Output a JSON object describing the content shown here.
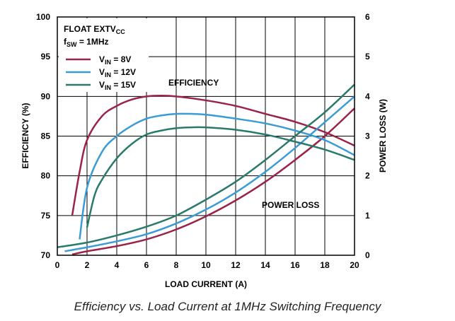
{
  "caption": "Efficiency vs. Load Current at 1MHz Switching Frequency",
  "chart_data": {
    "type": "line",
    "xlabel": "LOAD CURRENT (A)",
    "ylabel": "EFFICIENCY (%)",
    "y2label": "POWER LOSS (W)",
    "xlim": [
      0,
      20
    ],
    "ylim": [
      70,
      100
    ],
    "y2lim": [
      0,
      6
    ],
    "x_ticks": [
      "0",
      "2",
      "4",
      "6",
      "8",
      "10",
      "12",
      "14",
      "16",
      "18",
      "20"
    ],
    "y_ticks": [
      "70",
      "75",
      "80",
      "85",
      "90",
      "95",
      "100"
    ],
    "y2_ticks": [
      "0",
      "1",
      "2",
      "3",
      "4",
      "5",
      "6"
    ],
    "grid": true,
    "legend_placement": "top-left",
    "conditions": {
      "line1_main": "FLOAT EXTV",
      "line1_sub": "CC",
      "line2_main": "f",
      "line2_sub": "SW",
      "line2_rest": " = 1MHz"
    },
    "annotations": {
      "efficiency": "EFFICIENCY",
      "power_loss": "POWER LOSS"
    },
    "series": [
      {
        "name": "VIN = 8V",
        "label_main": "V",
        "label_sub": "IN",
        "label_rest": " = 8V",
        "color": "#9b2346",
        "efficiency": [
          [
            1.0,
            75.0
          ],
          [
            1.5,
            80.5
          ],
          [
            2.0,
            84.5
          ],
          [
            3.0,
            87.5
          ],
          [
            4.0,
            88.8
          ],
          [
            5.0,
            89.6
          ],
          [
            6.0,
            90.0
          ],
          [
            7.0,
            90.1
          ],
          [
            8.0,
            90.0
          ],
          [
            10.0,
            89.5
          ],
          [
            12.0,
            88.8
          ],
          [
            14.0,
            87.8
          ],
          [
            16.0,
            86.8
          ],
          [
            18.0,
            85.5
          ],
          [
            20.0,
            83.8
          ]
        ],
        "power_loss": [
          [
            1.0,
            0.02
          ],
          [
            2.0,
            0.1
          ],
          [
            4.0,
            0.23
          ],
          [
            6.0,
            0.4
          ],
          [
            8.0,
            0.65
          ],
          [
            10.0,
            0.98
          ],
          [
            12.0,
            1.38
          ],
          [
            14.0,
            1.85
          ],
          [
            16.0,
            2.4
          ],
          [
            18.0,
            3.0
          ],
          [
            20.0,
            3.7
          ]
        ]
      },
      {
        "name": "VIN = 12V",
        "label_main": "V",
        "label_sub": "IN",
        "label_rest": " = 12V",
        "color": "#3a9bd5",
        "efficiency": [
          [
            1.5,
            72.0
          ],
          [
            2.0,
            78.5
          ],
          [
            3.0,
            83.0
          ],
          [
            4.0,
            85.0
          ],
          [
            5.0,
            86.3
          ],
          [
            6.0,
            87.2
          ],
          [
            7.0,
            87.6
          ],
          [
            8.0,
            87.8
          ],
          [
            9.0,
            87.8
          ],
          [
            10.0,
            87.7
          ],
          [
            12.0,
            87.2
          ],
          [
            14.0,
            86.6
          ],
          [
            16.0,
            85.7
          ],
          [
            18.0,
            84.5
          ],
          [
            20.0,
            82.6
          ]
        ],
        "power_loss": [
          [
            0.5,
            0.1
          ],
          [
            2.0,
            0.2
          ],
          [
            4.0,
            0.35
          ],
          [
            6.0,
            0.53
          ],
          [
            8.0,
            0.8
          ],
          [
            10.0,
            1.15
          ],
          [
            12.0,
            1.58
          ],
          [
            14.0,
            2.1
          ],
          [
            16.0,
            2.7
          ],
          [
            18.0,
            3.35
          ],
          [
            20.0,
            4.0
          ]
        ]
      },
      {
        "name": "VIN = 15V",
        "label_main": "V",
        "label_sub": "IN",
        "label_rest": " = 15V",
        "color": "#2a7a6c",
        "efficiency": [
          [
            2.0,
            73.5
          ],
          [
            2.5,
            77.5
          ],
          [
            3.0,
            79.5
          ],
          [
            4.0,
            82.2
          ],
          [
            5.0,
            84.0
          ],
          [
            6.0,
            85.2
          ],
          [
            7.0,
            85.7
          ],
          [
            8.0,
            86.0
          ],
          [
            9.0,
            86.1
          ],
          [
            10.0,
            86.1
          ],
          [
            12.0,
            85.8
          ],
          [
            14.0,
            85.2
          ],
          [
            16.0,
            84.3
          ],
          [
            18.0,
            83.3
          ],
          [
            20.0,
            82.0
          ]
        ],
        "power_loss": [
          [
            0.0,
            0.2
          ],
          [
            2.0,
            0.32
          ],
          [
            4.0,
            0.5
          ],
          [
            6.0,
            0.72
          ],
          [
            8.0,
            1.0
          ],
          [
            10.0,
            1.4
          ],
          [
            12.0,
            1.85
          ],
          [
            14.0,
            2.4
          ],
          [
            16.0,
            3.0
          ],
          [
            18.0,
            3.6
          ],
          [
            20.0,
            4.3
          ]
        ]
      }
    ]
  }
}
